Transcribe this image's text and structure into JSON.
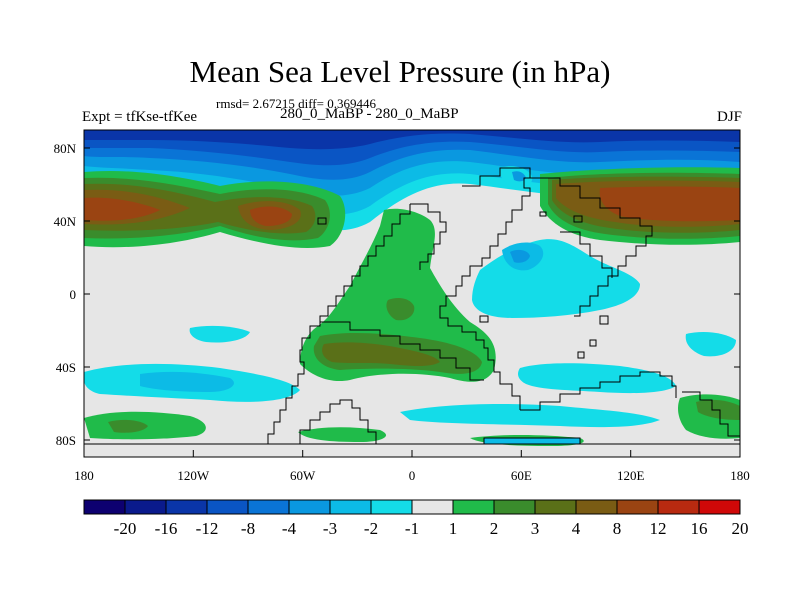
{
  "title": "Mean Sea Level Pressure (in hPa)",
  "stats": "rmsd= 2.67215 diff= 0.369446",
  "left_label": "Expt = tfKse-tfKee",
  "center_label": "280_0_MaBP - 280_0_MaBP",
  "right_label": "DJF",
  "x_ticks": [
    "180",
    "120W",
    "60W",
    "0",
    "60E",
    "120E",
    "180"
  ],
  "y_ticks": [
    "80N",
    "40N",
    "0",
    "40S",
    "80S"
  ],
  "colorbar": {
    "labels": [
      "-20",
      "-16",
      "-12",
      "-8",
      "-4",
      "-3",
      "-2",
      "-1",
      "1",
      "2",
      "3",
      "4",
      "8",
      "12",
      "16",
      "20"
    ],
    "colors": [
      "#0d0070",
      "#0a1a8c",
      "#0a35a8",
      "#0a55c4",
      "#0a74d6",
      "#0a98e0",
      "#0cbbe6",
      "#14dce8",
      "#e6e6e6",
      "#20bb4a",
      "#3a8c2c",
      "#5a7018",
      "#7a5c14",
      "#9a4412",
      "#b82a10",
      "#d00808"
    ]
  }
}
